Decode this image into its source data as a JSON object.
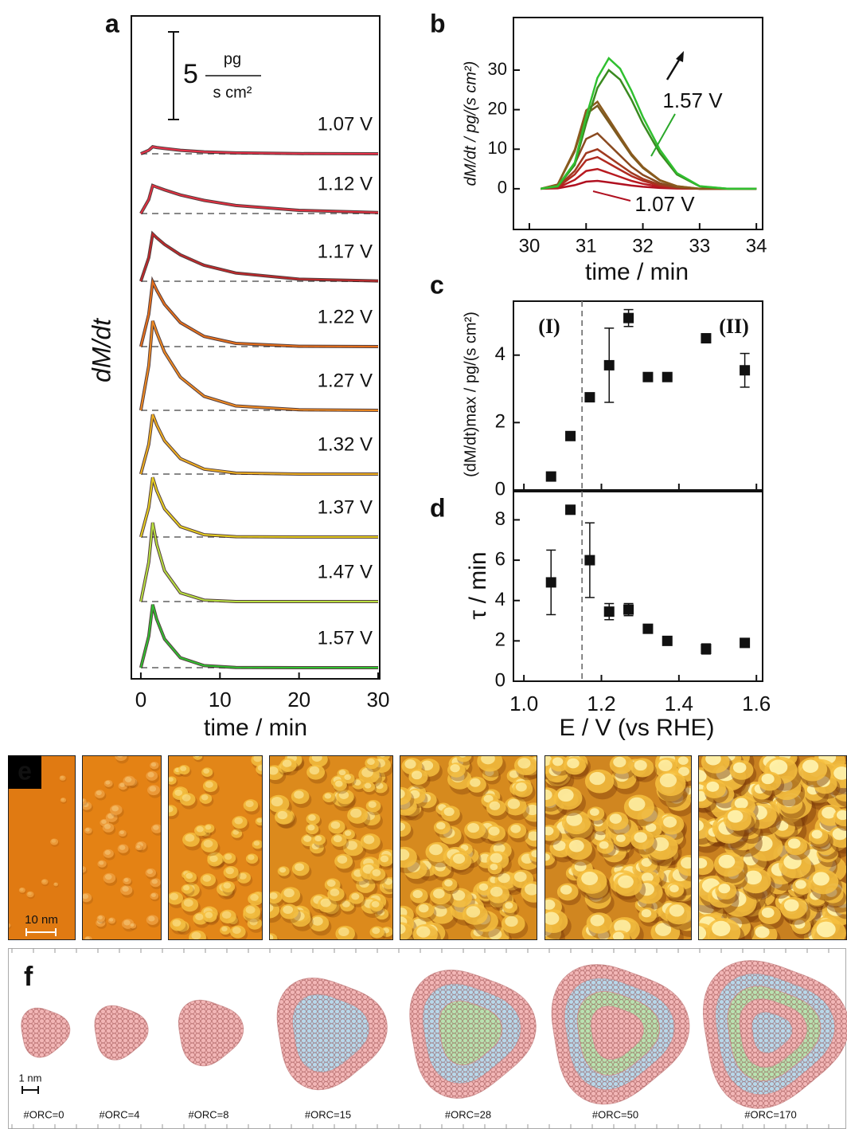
{
  "chart_data": [
    {
      "type": "line",
      "label": "a",
      "ylabel": "dM/dt",
      "xlabel": "time / min",
      "xlim": [
        -1.2,
        30.2
      ],
      "xticks": [
        0,
        10,
        20,
        30
      ],
      "scale_bar": {
        "value": 5,
        "unit_top": "pg",
        "unit_bottom": "s cm²"
      },
      "x": [
        0,
        1,
        1.5,
        2,
        3,
        5,
        8,
        12,
        20,
        30
      ],
      "series": [
        {
          "name": "1.07 V",
          "color": "#e8324a",
          "label_color": "#9a1a22",
          "values": [
            0,
            0.2,
            0.4,
            0.36,
            0.3,
            0.2,
            0.11,
            0.05,
            0.01,
            0
          ]
        },
        {
          "name": "1.12 V",
          "color": "#e23040",
          "label_color": "#9a1a22",
          "values": [
            0,
            0.8,
            1.6,
            1.51,
            1.35,
            1.06,
            0.75,
            0.46,
            0.18,
            0.06
          ]
        },
        {
          "name": "1.17 V",
          "color": "#c0282a",
          "label_color": "#9a1a22",
          "values": [
            0,
            1.35,
            2.7,
            2.48,
            2.1,
            1.51,
            0.91,
            0.47,
            0.12,
            0.02
          ]
        },
        {
          "name": "1.22 V",
          "color": "#e8701a",
          "label_color": "#9a1a22",
          "values": [
            0,
            1.85,
            3.7,
            3.22,
            2.41,
            1.37,
            0.58,
            0.18,
            0.02,
            0
          ]
        },
        {
          "name": "1.27 V",
          "color": "#f08a20",
          "label_color": "#8a3a1e",
          "values": [
            0,
            2.55,
            5.1,
            4.44,
            3.32,
            1.89,
            0.8,
            0.25,
            0.03,
            0
          ]
        },
        {
          "name": "1.32 V",
          "color": "#f0b020",
          "label_color": "#6e4a1a",
          "values": [
            0,
            1.7,
            3.4,
            2.81,
            1.9,
            0.88,
            0.28,
            0.06,
            0,
            0
          ]
        },
        {
          "name": "1.37 V",
          "color": "#e8d020",
          "label_color": "#5a4a14",
          "values": [
            0,
            1.7,
            3.4,
            2.65,
            1.61,
            0.59,
            0.13,
            0.02,
            0,
            0
          ]
        },
        {
          "name": "1.47 V",
          "color": "#b8e040",
          "label_color": "#2a7a1e",
          "values": [
            0,
            2.25,
            4.5,
            3.28,
            1.76,
            0.5,
            0.08,
            0,
            0,
            0
          ]
        },
        {
          "name": "1.57 V",
          "color": "#30c030",
          "label_color": "#2a9a1e",
          "values": [
            0,
            1.8,
            3.6,
            2.77,
            1.63,
            0.57,
            0.12,
            0.01,
            0,
            0
          ]
        }
      ]
    },
    {
      "type": "line",
      "label": "b",
      "ylabel": "dM/dt / pg/(s cm²)",
      "xlabel": "time / min",
      "xlim": [
        29.72,
        34.11
      ],
      "xticks": [
        30,
        31,
        32,
        33,
        34
      ],
      "ylim": [
        -10.3,
        43.3
      ],
      "yticks": [
        0,
        10,
        20,
        30
      ],
      "annotations": [
        {
          "text": "1.57 V",
          "color": "#2aa82a"
        },
        {
          "text": "1.07 V",
          "color": "#b01020"
        }
      ],
      "x": [
        30.2,
        30.5,
        30.8,
        31.0,
        31.2,
        31.4,
        31.6,
        31.8,
        32.0,
        32.3,
        32.6,
        33,
        33.5,
        34
      ],
      "series": [
        {
          "color": "#b01020",
          "values": [
            0,
            0.1,
            0.9,
            1.8,
            2,
            1.6,
            1.2,
            0.8,
            0.5,
            0.2,
            0.06,
            0,
            0,
            0
          ]
        },
        {
          "color": "#b81a20",
          "values": [
            0,
            0.25,
            2.25,
            4.5,
            5,
            4,
            3,
            2,
            1.25,
            0.5,
            0.15,
            0,
            0,
            0
          ]
        },
        {
          "color": "#b02a20",
          "values": [
            0,
            0.4,
            3.6,
            7.2,
            8,
            6.4,
            4.8,
            3.2,
            2,
            0.8,
            0.24,
            0,
            0,
            0
          ]
        },
        {
          "color": "#a03a20",
          "values": [
            0,
            0.5,
            4.5,
            9,
            10,
            8,
            6,
            4,
            2.5,
            1,
            0.3,
            0,
            0,
            0
          ]
        },
        {
          "color": "#8a4a20",
          "values": [
            0,
            0.7,
            6.3,
            12.6,
            14,
            11.2,
            8.4,
            5.6,
            3.5,
            1.4,
            0.42,
            0,
            0,
            0
          ]
        },
        {
          "color": "#7a5a20",
          "values": [
            0,
            1.05,
            9.45,
            18.9,
            21,
            16.8,
            12.6,
            8.4,
            5.25,
            2.1,
            0.63,
            0,
            0,
            0
          ]
        },
        {
          "color": "#8a5a1e",
          "values": [
            0,
            1.1,
            9.9,
            19.8,
            22,
            17.6,
            13.2,
            8.8,
            5.5,
            2.2,
            0.66,
            0,
            0,
            0
          ]
        },
        {
          "color": "#3a8a20",
          "values": [
            0,
            0.6,
            6,
            16.5,
            25.5,
            30,
            27.6,
            22.5,
            16.5,
            9,
            3.6,
            0.6,
            0,
            0
          ]
        },
        {
          "color": "#30c030",
          "values": [
            0,
            0.66,
            6.6,
            18.15,
            28.05,
            33,
            30.36,
            24.75,
            18.15,
            9.9,
            3.96,
            0.66,
            0,
            0
          ]
        }
      ]
    },
    {
      "type": "scatter",
      "label": "c",
      "ylabel": "(dM/dt)max / pg/(s cm²)",
      "annotations": [
        {
          "text": "(I)"
        },
        {
          "text": "(II)"
        }
      ],
      "xlim": [
        0.973,
        1.616
      ],
      "xticks": [
        1,
        1.2,
        1.4,
        1.6
      ],
      "ylim": [
        0,
        5.6
      ],
      "yticks": [
        0,
        2,
        4
      ],
      "vline": 1.15,
      "color": "#111111",
      "x": [
        1.07,
        1.12,
        1.17,
        1.22,
        1.27,
        1.32,
        1.37,
        1.47,
        1.57
      ],
      "values": [
        0.4,
        1.6,
        2.75,
        3.7,
        5.1,
        3.35,
        3.35,
        4.5,
        3.55
      ],
      "errors": [
        0.05,
        0.05,
        0.05,
        1.1,
        0.25,
        0.05,
        0.05,
        0.05,
        0.5
      ]
    },
    {
      "type": "scatter",
      "label": "d",
      "ylabel": "τ / min",
      "xlabel": "E / V (vs RHE)",
      "xlim": [
        0.973,
        1.616
      ],
      "xticks": [
        {
          "value": 1,
          "label": "1.0"
        },
        1.2,
        1.4,
        1.6
      ],
      "ylim": [
        0,
        9.4
      ],
      "yticks": [
        0,
        2,
        4,
        6,
        8
      ],
      "vline": 1.15,
      "color": "#111111",
      "x": [
        1.07,
        1.12,
        1.17,
        1.22,
        1.27,
        1.32,
        1.37,
        1.47,
        1.57
      ],
      "values": [
        4.9,
        8.5,
        6.0,
        3.45,
        3.55,
        2.6,
        2.0,
        1.6,
        1.9
      ],
      "errors": [
        1.6,
        0.05,
        1.85,
        0.4,
        0.3,
        0.2,
        0.15,
        0.25,
        0.15
      ]
    }
  ],
  "images": {
    "label": "e",
    "scale_bar": "10 nm"
  },
  "models": {
    "label": "f",
    "scale_bar": "1 nm",
    "labels": [
      "#ORC=0",
      "#ORC=4",
      "#ORC=8",
      "#ORC=15",
      "#ORC=28",
      "#ORC=50",
      "#ORC=170"
    ]
  }
}
